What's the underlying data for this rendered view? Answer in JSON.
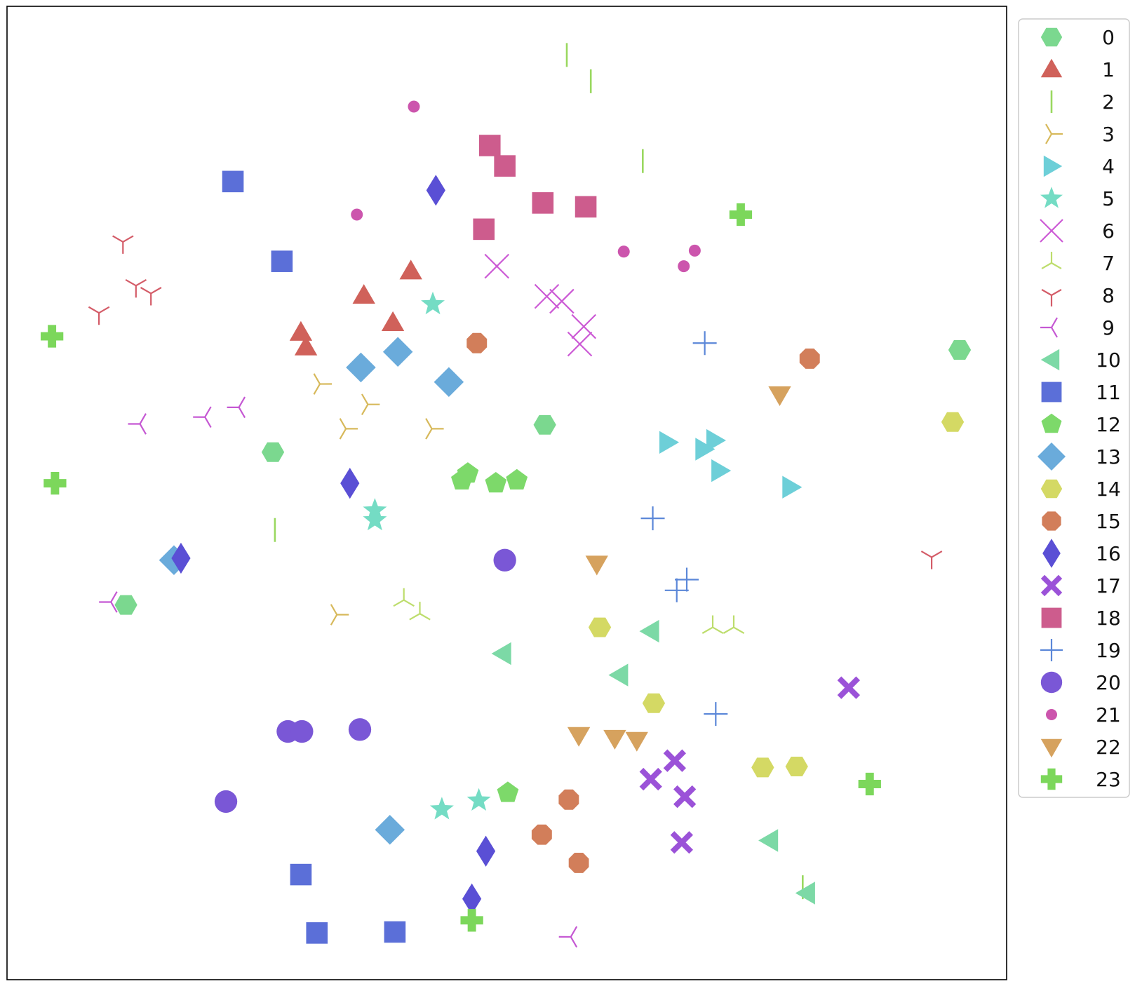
{
  "chart_data": {
    "type": "scatter",
    "title": "",
    "xlabel": "",
    "ylabel": "",
    "xlim": [
      0,
      100
    ],
    "ylim": [
      0,
      100
    ],
    "grid": false,
    "axis_ticks": false,
    "legend_position": "right, outside plot",
    "series": [
      {
        "name": "0",
        "marker": "hexagon",
        "color": "#7bd88f",
        "points": [
          [
            95.3,
            64.7
          ],
          [
            26.6,
            54.2
          ],
          [
            53.8,
            57.0
          ],
          [
            11.9,
            38.5
          ]
        ]
      },
      {
        "name": "1",
        "marker": "triangle-up",
        "color": "#d0615a",
        "points": [
          [
            40.4,
            72.8
          ],
          [
            35.7,
            70.3
          ],
          [
            38.6,
            67.5
          ],
          [
            29.4,
            66.5
          ],
          [
            29.9,
            65.0
          ]
        ]
      },
      {
        "name": "2",
        "marker": "vline",
        "color": "#9ad860",
        "points": [
          [
            56.0,
            95.0
          ],
          [
            58.4,
            92.3
          ],
          [
            63.6,
            84.1
          ],
          [
            26.8,
            46.2
          ],
          [
            79.6,
            9.5
          ]
        ]
      },
      {
        "name": "3",
        "marker": "tri-right",
        "color": "#d7b95b",
        "points": [
          [
            31.3,
            61.2
          ],
          [
            36.1,
            59.1
          ],
          [
            33.9,
            56.6
          ],
          [
            42.5,
            56.6
          ],
          [
            33.0,
            37.5
          ]
        ]
      },
      {
        "name": "4",
        "marker": "triangle-right",
        "color": "#6dcfd8",
        "points": [
          [
            66.1,
            55.2
          ],
          [
            70.8,
            55.4
          ],
          [
            69.7,
            54.5
          ],
          [
            71.3,
            52.3
          ],
          [
            78.4,
            50.6
          ]
        ]
      },
      {
        "name": "5",
        "marker": "star",
        "color": "#74dcc4",
        "points": [
          [
            42.6,
            69.4
          ],
          [
            36.8,
            48.2
          ],
          [
            36.8,
            47.2
          ],
          [
            47.2,
            18.4
          ],
          [
            43.5,
            17.5
          ]
        ]
      },
      {
        "name": "6",
        "marker": "x",
        "color": "#cc5ad5",
        "points": [
          [
            49.0,
            73.3
          ],
          [
            54.0,
            70.2
          ],
          [
            55.5,
            69.7
          ],
          [
            57.7,
            67.1
          ],
          [
            57.3,
            65.3
          ]
        ]
      },
      {
        "name": "7",
        "marker": "tri-up",
        "color": "#bddd6c",
        "points": [
          [
            39.7,
            39.0
          ],
          [
            41.3,
            37.6
          ],
          [
            70.6,
            36.2
          ],
          [
            72.7,
            36.2
          ]
        ]
      },
      {
        "name": "8",
        "marker": "tri-down",
        "color": "#d45c68",
        "points": [
          [
            11.6,
            75.8
          ],
          [
            12.9,
            71.3
          ],
          [
            14.4,
            70.5
          ],
          [
            9.2,
            68.5
          ],
          [
            92.5,
            43.4
          ]
        ]
      },
      {
        "name": "9",
        "marker": "tri-left",
        "color": "#c558d3",
        "points": [
          [
            13.3,
            57.1
          ],
          [
            19.8,
            57.8
          ],
          [
            23.2,
            58.8
          ],
          [
            10.4,
            38.8
          ],
          [
            56.4,
            4.4
          ]
        ]
      },
      {
        "name": "10",
        "marker": "triangle-left",
        "color": "#7cd9a6",
        "points": [
          [
            49.6,
            33.5
          ],
          [
            64.4,
            35.8
          ],
          [
            61.3,
            31.3
          ],
          [
            76.3,
            14.3
          ],
          [
            80.0,
            8.9
          ]
        ]
      },
      {
        "name": "11",
        "marker": "square",
        "color": "#5b6fd8",
        "points": [
          [
            22.6,
            82.0
          ],
          [
            27.5,
            73.8
          ],
          [
            29.4,
            10.8
          ],
          [
            31.0,
            4.8
          ],
          [
            38.8,
            4.9
          ]
        ]
      },
      {
        "name": "12",
        "marker": "pentagon",
        "color": "#7dd96a",
        "points": [
          [
            46.1,
            52.0
          ],
          [
            45.5,
            51.3
          ],
          [
            48.9,
            51.0
          ],
          [
            51.0,
            51.3
          ],
          [
            50.1,
            19.2
          ]
        ]
      },
      {
        "name": "13",
        "marker": "diamond",
        "color": "#6aabdb",
        "points": [
          [
            39.1,
            64.5
          ],
          [
            35.4,
            62.9
          ],
          [
            44.2,
            61.4
          ],
          [
            16.7,
            43.1
          ],
          [
            38.3,
            15.4
          ]
        ]
      },
      {
        "name": "14",
        "marker": "hexagon",
        "color": "#d4d964",
        "points": [
          [
            94.6,
            57.3
          ],
          [
            59.3,
            36.2
          ],
          [
            64.7,
            28.4
          ],
          [
            75.6,
            21.8
          ],
          [
            79.0,
            21.9
          ]
        ]
      },
      {
        "name": "15",
        "marker": "octagon",
        "color": "#d27e5a",
        "points": [
          [
            47.0,
            65.4
          ],
          [
            80.3,
            63.8
          ],
          [
            56.2,
            18.5
          ],
          [
            53.5,
            14.9
          ],
          [
            57.2,
            12.0
          ]
        ]
      },
      {
        "name": "16",
        "marker": "thin-diamond",
        "color": "#5a4fd5",
        "points": [
          [
            42.9,
            81.1
          ],
          [
            34.3,
            51.0
          ],
          [
            17.4,
            43.3
          ],
          [
            47.9,
            13.2
          ],
          [
            46.5,
            8.3
          ]
        ]
      },
      {
        "name": "17",
        "marker": "x-filled",
        "color": "#9b52d8",
        "points": [
          [
            84.2,
            30.0
          ],
          [
            66.8,
            22.5
          ],
          [
            64.4,
            20.6
          ],
          [
            67.8,
            18.8
          ],
          [
            67.5,
            14.1
          ]
        ]
      },
      {
        "name": "18",
        "marker": "square",
        "color": "#cd5c8d",
        "points": [
          [
            48.3,
            85.7
          ],
          [
            49.8,
            83.6
          ],
          [
            53.6,
            79.8
          ],
          [
            57.9,
            79.4
          ],
          [
            47.7,
            77.1
          ]
        ]
      },
      {
        "name": "19",
        "marker": "plus",
        "color": "#5b87d8",
        "points": [
          [
            69.8,
            65.4
          ],
          [
            64.6,
            47.4
          ],
          [
            68.0,
            41.1
          ],
          [
            67.0,
            40.0
          ],
          [
            70.9,
            27.3
          ]
        ]
      },
      {
        "name": "20",
        "marker": "circle",
        "color": "#7a57d6",
        "points": [
          [
            49.8,
            43.1
          ],
          [
            28.1,
            25.5
          ],
          [
            29.5,
            25.5
          ],
          [
            35.3,
            25.7
          ],
          [
            21.9,
            18.3
          ]
        ]
      },
      {
        "name": "21",
        "marker": "point",
        "color": "#cc55ad",
        "points": [
          [
            40.7,
            89.7
          ],
          [
            35.0,
            78.6
          ],
          [
            61.7,
            74.8
          ],
          [
            68.8,
            74.9
          ],
          [
            67.7,
            73.3
          ]
        ]
      },
      {
        "name": "22",
        "marker": "triangle-down",
        "color": "#d6a25e",
        "points": [
          [
            77.3,
            60.1
          ],
          [
            59.0,
            42.7
          ],
          [
            57.2,
            25.1
          ],
          [
            60.8,
            24.8
          ],
          [
            63.0,
            24.6
          ]
        ]
      },
      {
        "name": "23",
        "marker": "plus-filled",
        "color": "#7cd75b",
        "points": [
          [
            73.4,
            78.6
          ],
          [
            4.5,
            66.1
          ],
          [
            4.8,
            51.0
          ],
          [
            86.3,
            20.1
          ],
          [
            46.5,
            6.1
          ]
        ]
      }
    ]
  }
}
